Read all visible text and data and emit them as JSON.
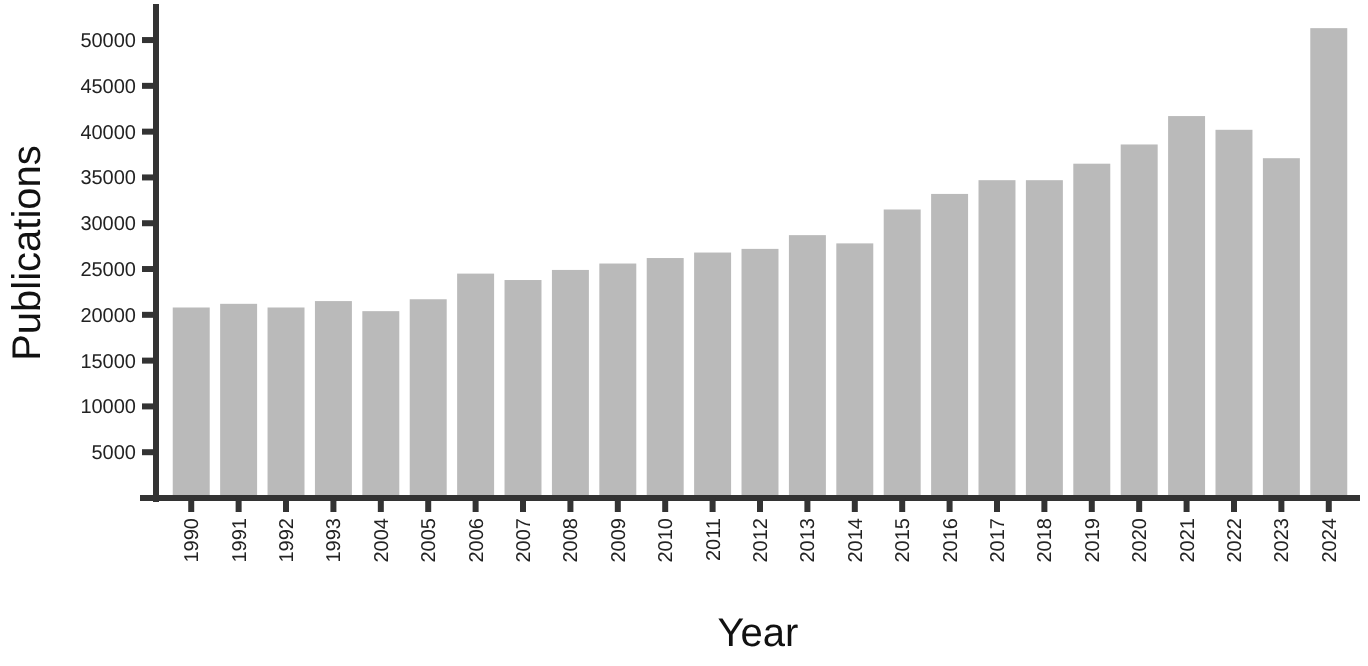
{
  "chart_data": {
    "type": "bar",
    "xlabel": "Year",
    "ylabel": "Publications",
    "categories": [
      "1990",
      "1991",
      "1992",
      "1993",
      "2004",
      "2005",
      "2006",
      "2007",
      "2008",
      "2009",
      "2010",
      "2011",
      "2012",
      "2013",
      "2014",
      "2015",
      "2016",
      "2017",
      "2018",
      "2019",
      "2020",
      "2021",
      "2022",
      "2023",
      "2024"
    ],
    "values": [
      20800,
      21200,
      20800,
      21500,
      20400,
      21700,
      24500,
      23800,
      24900,
      25600,
      26200,
      26800,
      27200,
      28700,
      27800,
      31500,
      33200,
      34700,
      34700,
      36500,
      38600,
      41700,
      40200,
      37100,
      51300
    ],
    "color": "#bababa",
    "ylim": [
      0,
      53500
    ],
    "yticks": [
      5000,
      10000,
      15000,
      20000,
      25000,
      30000,
      35000,
      40000,
      45000,
      50000
    ],
    "grid": false
  }
}
